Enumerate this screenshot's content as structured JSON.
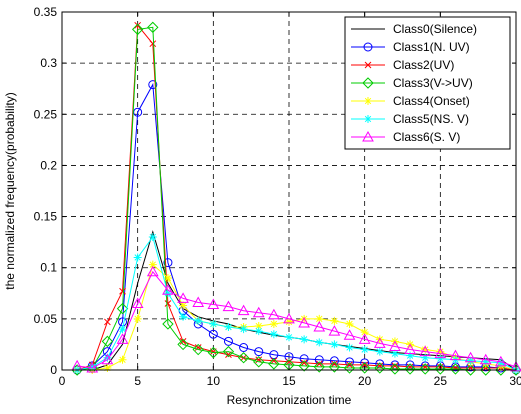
{
  "chart_data": {
    "type": "line",
    "xlabel": "Resynchronization time",
    "ylabel": "the normalized frequency(probability)",
    "xlim": [
      0,
      30
    ],
    "ylim": [
      0,
      0.35
    ],
    "xticks": [
      "0",
      "5",
      "10",
      "15",
      "20",
      "25",
      "30"
    ],
    "yticks": [
      "0",
      "0.05",
      "0.1",
      "0.15",
      "0.2",
      "0.25",
      "0.3",
      "0.35"
    ],
    "grid": true,
    "legend_position": "top-right",
    "series": [
      {
        "name": "Class0(Silence)",
        "color": "#000000",
        "marker": "none",
        "x": [
          1,
          2,
          3,
          4,
          5,
          6,
          7,
          8,
          9,
          10,
          11,
          12,
          13,
          14,
          15,
          16,
          17,
          18,
          19,
          20,
          21,
          22,
          23,
          24,
          25,
          26,
          27,
          28,
          29,
          30
        ],
        "y": [
          0.0,
          0.0,
          0.005,
          0.025,
          0.085,
          0.135,
          0.085,
          0.06,
          0.052,
          0.048,
          0.045,
          0.04,
          0.037,
          0.034,
          0.032,
          0.03,
          0.027,
          0.025,
          0.023,
          0.021,
          0.019,
          0.017,
          0.016,
          0.015,
          0.014,
          0.013,
          0.012,
          0.011,
          0.01,
          0.0
        ]
      },
      {
        "name": "Class1(N. UV)",
        "color": "#0000ff",
        "marker": "circle",
        "x": [
          1,
          2,
          3,
          4,
          5,
          6,
          7,
          8,
          9,
          10,
          11,
          12,
          13,
          14,
          15,
          16,
          17,
          18,
          19,
          20,
          21,
          22,
          23,
          24,
          25,
          26,
          27,
          28,
          29,
          30
        ],
        "y": [
          0.0,
          0.004,
          0.018,
          0.047,
          0.252,
          0.279,
          0.105,
          0.058,
          0.045,
          0.035,
          0.028,
          0.022,
          0.018,
          0.015,
          0.013,
          0.011,
          0.01,
          0.009,
          0.008,
          0.007,
          0.006,
          0.005,
          0.005,
          0.004,
          0.004,
          0.003,
          0.003,
          0.003,
          0.002,
          0.0
        ]
      },
      {
        "name": "Class2(UV)",
        "color": "#ff0000",
        "marker": "x",
        "x": [
          1,
          2,
          3,
          4,
          5,
          6,
          7,
          8,
          9,
          10,
          11,
          12,
          13,
          14,
          15,
          16,
          17,
          18,
          19,
          20,
          21,
          22,
          23,
          24,
          25,
          26,
          27,
          28,
          29,
          30
        ],
        "y": [
          0.0,
          0.005,
          0.047,
          0.077,
          0.337,
          0.319,
          0.065,
          0.028,
          0.022,
          0.018,
          0.015,
          0.012,
          0.01,
          0.009,
          0.008,
          0.007,
          0.006,
          0.006,
          0.005,
          0.005,
          0.004,
          0.004,
          0.003,
          0.003,
          0.003,
          0.002,
          0.002,
          0.002,
          0.002,
          0.0
        ]
      },
      {
        "name": "Class3(V->UV)",
        "color": "#00cc00",
        "marker": "diamond",
        "x": [
          1,
          2,
          3,
          4,
          5,
          6,
          7,
          8,
          9,
          10,
          11,
          12,
          13,
          14,
          15,
          16,
          17,
          18,
          19,
          20,
          21,
          22,
          23,
          24,
          25,
          26,
          27,
          28,
          29,
          30
        ],
        "y": [
          0.0,
          0.002,
          0.028,
          0.06,
          0.333,
          0.335,
          0.045,
          0.025,
          0.02,
          0.017,
          0.018,
          0.012,
          0.008,
          0.006,
          0.005,
          0.004,
          0.003,
          0.003,
          0.002,
          0.002,
          0.002,
          0.001,
          0.001,
          0.001,
          0.001,
          0.001,
          0.0,
          0.0,
          0.0,
          0.0
        ]
      },
      {
        "name": "Class4(Onset)",
        "color": "#ffff00",
        "marker": "star",
        "x": [
          1,
          2,
          3,
          4,
          5,
          6,
          7,
          8,
          9,
          10,
          11,
          12,
          13,
          14,
          15,
          16,
          17,
          18,
          19,
          20,
          21,
          22,
          23,
          24,
          25,
          26,
          27,
          28,
          29,
          30
        ],
        "y": [
          0.0,
          0.0,
          0.002,
          0.01,
          0.05,
          0.103,
          0.09,
          0.063,
          0.048,
          0.045,
          0.042,
          0.042,
          0.043,
          0.045,
          0.047,
          0.05,
          0.05,
          0.048,
          0.045,
          0.037,
          0.03,
          0.028,
          0.025,
          0.02,
          0.018,
          0.012,
          0.008,
          0.006,
          0.004,
          0.0
        ]
      },
      {
        "name": "Class5(NS. V)",
        "color": "#00ffff",
        "marker": "star",
        "x": [
          1,
          2,
          3,
          4,
          5,
          6,
          7,
          8,
          9,
          10,
          11,
          12,
          13,
          14,
          15,
          16,
          17,
          18,
          19,
          20,
          21,
          22,
          23,
          24,
          25,
          26,
          27,
          28,
          29,
          30
        ],
        "y": [
          0.0,
          0.003,
          0.012,
          0.04,
          0.11,
          0.13,
          0.075,
          0.052,
          0.048,
          0.045,
          0.042,
          0.04,
          0.038,
          0.035,
          0.032,
          0.03,
          0.027,
          0.025,
          0.022,
          0.02,
          0.018,
          0.016,
          0.014,
          0.012,
          0.011,
          0.01,
          0.009,
          0.008,
          0.007,
          0.0
        ]
      },
      {
        "name": "Class6(S. V)",
        "color": "#ff00ff",
        "marker": "triangle",
        "x": [
          1,
          2,
          3,
          4,
          5,
          6,
          7,
          8,
          9,
          10,
          11,
          12,
          13,
          14,
          15,
          16,
          17,
          18,
          19,
          20,
          21,
          22,
          23,
          24,
          25,
          26,
          27,
          28,
          29,
          30
        ],
        "y": [
          0.004,
          0.002,
          0.01,
          0.03,
          0.065,
          0.096,
          0.078,
          0.07,
          0.066,
          0.064,
          0.062,
          0.058,
          0.056,
          0.054,
          0.05,
          0.046,
          0.042,
          0.038,
          0.034,
          0.03,
          0.026,
          0.023,
          0.02,
          0.018,
          0.016,
          0.014,
          0.012,
          0.01,
          0.008,
          0.003
        ]
      }
    ]
  }
}
